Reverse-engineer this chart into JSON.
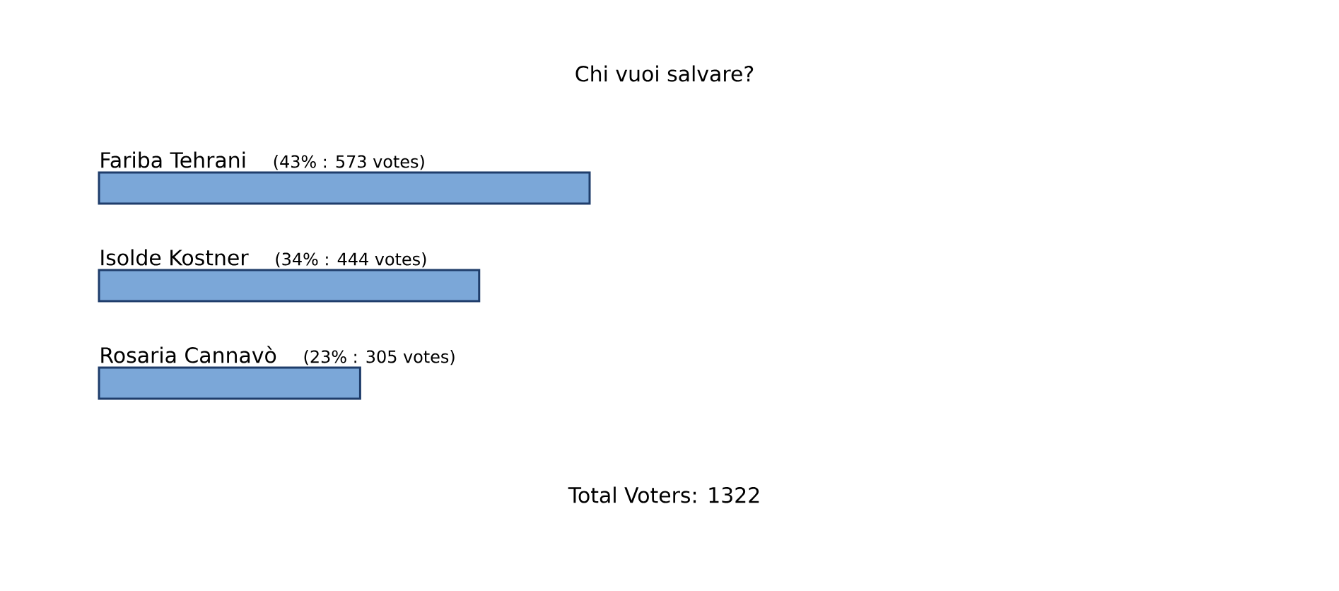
{
  "chart_data": {
    "type": "bar",
    "orientation": "horizontal",
    "title": "Chi vuoi salvare?",
    "categories": [
      "Fariba Tehrani",
      "Isolde Kostner",
      "Rosaria Cannavò"
    ],
    "values": [
      573,
      444,
      305
    ],
    "value_labels": [
      "(43% : 573 votes)",
      "(34% : 444 votes)",
      "(23% : 305 votes)"
    ],
    "color": "#7ba7d8",
    "annotations": [
      "Total Voters: 1322"
    ]
  }
}
